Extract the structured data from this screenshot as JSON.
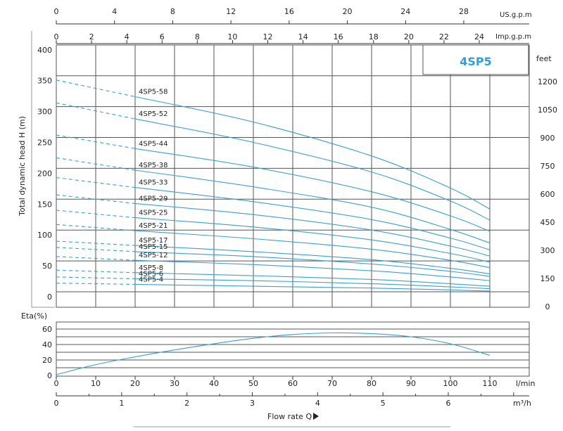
{
  "chart_data": {
    "type": "line",
    "model": "4SP5",
    "head_panel": {
      "ylabel": "Total dynamic head H (m)",
      "ylim": [
        -10,
        410
      ],
      "yticks": [
        0,
        50,
        100,
        150,
        200,
        250,
        300,
        350,
        400
      ],
      "xlim": [
        0,
        110
      ],
      "xgrid": [
        0,
        10,
        20,
        30,
        40,
        50,
        60,
        70,
        80,
        90,
        100,
        110
      ],
      "dashed_until": 20,
      "series": [
        {
          "name": "4SP5-58",
          "x": [
            0,
            20,
            50,
            80,
            100,
            110
          ],
          "y": [
            351,
            324,
            283,
            228,
            176,
            142
          ]
        },
        {
          "name": "4SP5-52",
          "x": [
            0,
            20,
            50,
            80,
            100,
            110
          ],
          "y": [
            314,
            288,
            250,
            202,
            155,
            124
          ]
        },
        {
          "name": "4SP5-44",
          "x": [
            0,
            20,
            50,
            80,
            100,
            110
          ],
          "y": [
            262,
            240,
            210,
            170,
            131,
            106
          ]
        },
        {
          "name": "4SP5-38",
          "x": [
            0,
            20,
            50,
            80,
            100,
            110
          ],
          "y": [
            225,
            205,
            178,
            145,
            109,
            87
          ]
        },
        {
          "name": "4SP5-33",
          "x": [
            0,
            20,
            50,
            80,
            100,
            110
          ],
          "y": [
            193,
            177,
            154,
            125,
            95,
            76
          ]
        },
        {
          "name": "4SP5-29",
          "x": [
            0,
            20,
            50,
            80,
            100,
            110
          ],
          "y": [
            165,
            151,
            133,
            108,
            82,
            66
          ]
        },
        {
          "name": "4SP5-25",
          "x": [
            0,
            20,
            50,
            80,
            100,
            110
          ],
          "y": [
            140,
            128,
            113,
            92,
            70,
            56
          ]
        },
        {
          "name": "4SP5-21",
          "x": [
            0,
            20,
            50,
            80,
            100,
            110
          ],
          "y": [
            117,
            107,
            94,
            77,
            59,
            47
          ]
        },
        {
          "name": "4SP5-17",
          "x": [
            0,
            20,
            50,
            80,
            100,
            110
          ],
          "y": [
            90,
            83,
            73,
            60,
            46,
            37
          ]
        },
        {
          "name": "4SP5-15",
          "x": [
            0,
            20,
            50,
            80,
            100,
            110
          ],
          "y": [
            80,
            73,
            65,
            53,
            41,
            33
          ]
        },
        {
          "name": "4SP5-12",
          "x": [
            0,
            20,
            50,
            80,
            100,
            110
          ],
          "y": [
            65,
            59,
            52,
            42,
            32,
            26
          ]
        },
        {
          "name": "4SP5-8",
          "x": [
            0,
            20,
            50,
            80,
            100,
            110
          ],
          "y": [
            43,
            39,
            34,
            28,
            21,
            17
          ]
        },
        {
          "name": "4SP5-6",
          "x": [
            0,
            20,
            50,
            80,
            100,
            110
          ],
          "y": [
            32,
            29,
            26,
            21,
            16,
            13
          ]
        },
        {
          "name": "4SP5-4",
          "x": [
            0,
            20,
            50,
            80,
            100,
            110
          ],
          "y": [
            22,
            20,
            17,
            14,
            11,
            9
          ]
        }
      ]
    },
    "feet_axis": {
      "label": "feet",
      "ticks": [
        0,
        150,
        300,
        450,
        600,
        750,
        900,
        1050,
        1200
      ]
    },
    "us_gpm_axis": {
      "label": "US.g.p.m",
      "ticks": [
        0,
        4,
        8,
        12,
        16,
        20,
        24,
        28
      ]
    },
    "imp_gpm_axis": {
      "label": "Imp.g.p.m",
      "ticks": [
        0,
        2,
        4,
        6,
        8,
        10,
        12,
        14,
        16,
        18,
        20,
        22,
        24
      ]
    },
    "eta_panel": {
      "ylabel": "Eta(%)",
      "ylim": [
        0,
        70
      ],
      "yticks": [
        0,
        20,
        40,
        60
      ],
      "series": [
        {
          "x": [
            0,
            10,
            20,
            30,
            40,
            50,
            60,
            70,
            80,
            90,
            100,
            110
          ],
          "y": [
            1,
            14,
            24,
            33,
            41,
            48,
            53,
            55,
            54,
            50,
            41,
            26
          ]
        }
      ]
    },
    "lmin_axis": {
      "label": "l/min",
      "ticks": [
        0,
        10,
        20,
        30,
        40,
        50,
        60,
        70,
        80,
        90,
        100,
        110
      ]
    },
    "m3h_axis": {
      "label": "m³/h",
      "ticks": [
        0,
        1,
        2,
        3,
        4,
        5,
        6
      ]
    },
    "xlabel": "Flow rate Q",
    "colors": {
      "curve": "#3aa0cc",
      "grid": "#555555",
      "title": "#2fa0d8"
    }
  }
}
